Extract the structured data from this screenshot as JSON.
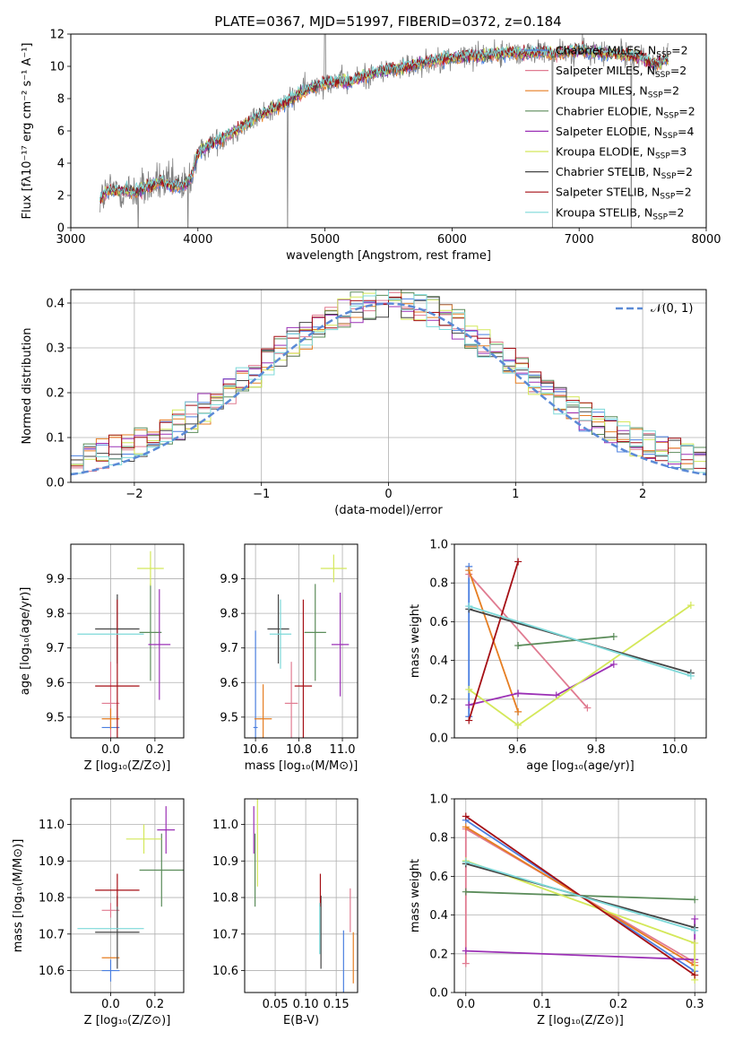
{
  "title": "PLATE=0367, MJD=51997, FIBERID=0372, z=0.184",
  "colors": {
    "chabrier_miles": "#4a7fe0",
    "salpeter_miles": "#e07b91",
    "kroupa_miles": "#e67e22",
    "chabrier_elodie": "#5b8c5a",
    "salpeter_elodie": "#9b30b5",
    "kroupa_elodie": "#d4e85a",
    "chabrier_stelib": "#444444",
    "salpeter_stelib": "#a50f15",
    "kroupa_stelib": "#7dd9d9",
    "normal_curve": "#5b8ad6",
    "grid": "#b0b0b0"
  },
  "chart_data": [
    {
      "id": "spectrum",
      "type": "line",
      "xlabel": "wavelength [Angstrom, rest frame]",
      "ylabel": "Flux [fλ10⁻¹⁷ erg cm⁻² s⁻¹ A⁻¹]",
      "xlim": [
        3000,
        8000
      ],
      "ylim": [
        0,
        12
      ],
      "xticks": [
        "3000",
        "4000",
        "5000",
        "6000",
        "7000",
        "8000"
      ],
      "yticks": [
        "0",
        "2",
        "4",
        "6",
        "8",
        "10",
        "12"
      ],
      "grid": false,
      "legend_position": "top-right",
      "continuum": [
        [
          3230,
          1.8
        ],
        [
          3300,
          2.3
        ],
        [
          3400,
          2.3
        ],
        [
          3500,
          2.2
        ],
        [
          3600,
          2.5
        ],
        [
          3700,
          2.8
        ],
        [
          3800,
          2.6
        ],
        [
          3900,
          2.6
        ],
        [
          3950,
          3.2
        ],
        [
          4000,
          4.6
        ],
        [
          4100,
          5.2
        ],
        [
          4200,
          5.6
        ],
        [
          4300,
          6.0
        ],
        [
          4400,
          6.5
        ],
        [
          4500,
          7.0
        ],
        [
          4600,
          7.4
        ],
        [
          4700,
          7.8
        ],
        [
          4800,
          8.3
        ],
        [
          4900,
          8.7
        ],
        [
          5000,
          9.0
        ],
        [
          5100,
          9.1
        ],
        [
          5200,
          9.0
        ],
        [
          5300,
          9.4
        ],
        [
          5400,
          9.6
        ],
        [
          5500,
          9.8
        ],
        [
          5600,
          9.9
        ],
        [
          5700,
          10.1
        ],
        [
          5800,
          10.3
        ],
        [
          5900,
          10.4
        ],
        [
          6000,
          10.5
        ],
        [
          6100,
          10.6
        ],
        [
          6200,
          10.7
        ],
        [
          6300,
          10.7
        ],
        [
          6400,
          10.8
        ],
        [
          6500,
          10.9
        ],
        [
          6600,
          10.8
        ],
        [
          6700,
          10.9
        ],
        [
          6800,
          10.8
        ],
        [
          6900,
          10.9
        ],
        [
          7000,
          11.0
        ],
        [
          7100,
          10.9
        ],
        [
          7200,
          10.8
        ],
        [
          7300,
          10.8
        ],
        [
          7400,
          10.7
        ],
        [
          7500,
          10.5
        ],
        [
          7600,
          10.1
        ],
        [
          7700,
          10.5
        ]
      ],
      "series": [
        {
          "name": "Chabrier MILES, N_SSP=2",
          "label": "Chabrier MILES, N",
          "sub": "SSP",
          "suffix": "=2",
          "color_key": "chabrier_miles"
        },
        {
          "name": "Salpeter MILES, N_SSP=2",
          "label": "Salpeter MILES, N",
          "sub": "SSP",
          "suffix": "=2",
          "color_key": "salpeter_miles"
        },
        {
          "name": "Kroupa MILES, N_SSP=2",
          "label": "Kroupa MILES, N",
          "sub": "SSP",
          "suffix": "=2",
          "color_key": "kroupa_miles"
        },
        {
          "name": "Chabrier ELODIE, N_SSP=2",
          "label": "Chabrier ELODIE, N",
          "sub": "SSP",
          "suffix": "=2",
          "color_key": "chabrier_elodie"
        },
        {
          "name": "Salpeter ELODIE, N_SSP=4",
          "label": "Salpeter ELODIE, N",
          "sub": "SSP",
          "suffix": "=4",
          "color_key": "salpeter_elodie"
        },
        {
          "name": "Kroupa ELODIE, N_SSP=3",
          "label": "Kroupa ELODIE, N",
          "sub": "SSP",
          "suffix": "=3",
          "color_key": "kroupa_elodie"
        },
        {
          "name": "Chabrier STELIB, N_SSP=2",
          "label": "Chabrier STELIB, N",
          "sub": "SSP",
          "suffix": "=2",
          "color_key": "chabrier_stelib"
        },
        {
          "name": "Salpeter STELIB, N_SSP=2",
          "label": "Salpeter STELIB, N",
          "sub": "SSP",
          "suffix": "=2",
          "color_key": "salpeter_stelib"
        },
        {
          "name": "Kroupa STELIB, N_SSP=2",
          "label": "Kroupa STELIB, N",
          "sub": "SSP",
          "suffix": "=2",
          "color_key": "kroupa_stelib"
        }
      ]
    },
    {
      "id": "residuals",
      "type": "histogram",
      "xlabel": "(data-model)/error",
      "ylabel": "Normed distribution",
      "xlim": [
        -2.5,
        2.5
      ],
      "ylim": [
        0,
        0.43
      ],
      "xticks": [
        "−2",
        "−1",
        "0",
        "1",
        "2"
      ],
      "yticks": [
        "0.0",
        "0.1",
        "0.2",
        "0.3",
        "0.4"
      ],
      "grid": true,
      "legend_position": "top-right",
      "normal_label": "𝒩(0, 1)",
      "bin_width": 0.1,
      "x_start": -2.5
    },
    {
      "id": "age_vs_Z",
      "type": "errorbar",
      "xlabel": "Z [log₁₀(Z/Z⊙)]",
      "ylabel": "age  [log₁₀(age/yr)]",
      "xlim": [
        -0.18,
        0.33
      ],
      "ylim": [
        9.44,
        10.0
      ],
      "xticks": [
        "0.0",
        "0.2"
      ],
      "yticks": [
        "9.5",
        "9.6",
        "9.7",
        "9.8",
        "9.9"
      ],
      "grid": true,
      "points": [
        {
          "color_key": "chabrier_miles",
          "x": 0.0,
          "dx": 0.04,
          "y": 9.47,
          "dy": 0.0
        },
        {
          "color_key": "salpeter_miles",
          "x": 0.0,
          "dx": 0.04,
          "y": 9.54,
          "dy": 0.12
        },
        {
          "color_key": "kroupa_miles",
          "x": 0.0,
          "dx": 0.04,
          "y": 9.495,
          "dy": 0.03
        },
        {
          "color_key": "chabrier_elodie",
          "x": 0.18,
          "dx": 0.05,
          "y": 9.745,
          "dy": 0.14
        },
        {
          "color_key": "salpeter_elodie",
          "x": 0.22,
          "dx": 0.05,
          "y": 9.71,
          "dy": 0.16
        },
        {
          "color_key": "kroupa_elodie",
          "x": 0.18,
          "dx": 0.06,
          "y": 9.93,
          "dy": 0.05
        },
        {
          "color_key": "chabrier_stelib",
          "x": 0.03,
          "dx": 0.1,
          "y": 9.755,
          "dy": 0.1
        },
        {
          "color_key": "salpeter_stelib",
          "x": 0.03,
          "dx": 0.1,
          "y": 9.59,
          "dy": 0.25
        },
        {
          "color_key": "kroupa_stelib",
          "x": 0.0,
          "dx": 0.15,
          "y": 9.74,
          "dy": 0.0
        }
      ]
    },
    {
      "id": "age_vs_mass",
      "type": "errorbar",
      "xlabel": "mass [log₁₀(M/M⊙)]",
      "ylabel": "",
      "xlim": [
        10.55,
        11.07
      ],
      "ylim": [
        9.44,
        10.0
      ],
      "xticks": [
        "10.6",
        "10.8",
        "11.0"
      ],
      "yticks": [
        "9.5",
        "9.6",
        "9.7",
        "9.8",
        "9.9"
      ],
      "grid": true,
      "points": [
        {
          "color_key": "chabrier_miles",
          "x": 10.6,
          "dx": 0.01,
          "y": 9.47,
          "dy": 0.28
        },
        {
          "color_key": "salpeter_miles",
          "x": 10.765,
          "dx": 0.03,
          "y": 9.54,
          "dy": 0.12
        },
        {
          "color_key": "kroupa_miles",
          "x": 10.635,
          "dx": 0.04,
          "y": 9.495,
          "dy": 0.1
        },
        {
          "color_key": "chabrier_elodie",
          "x": 10.875,
          "dx": 0.05,
          "y": 9.745,
          "dy": 0.14
        },
        {
          "color_key": "salpeter_elodie",
          "x": 10.99,
          "dx": 0.04,
          "y": 9.71,
          "dy": 0.15
        },
        {
          "color_key": "kroupa_elodie",
          "x": 10.96,
          "dx": 0.06,
          "y": 9.93,
          "dy": 0.04
        },
        {
          "color_key": "chabrier_stelib",
          "x": 10.705,
          "dx": 0.05,
          "y": 9.755,
          "dy": 0.1
        },
        {
          "color_key": "salpeter_stelib",
          "x": 10.82,
          "dx": 0.04,
          "y": 9.59,
          "dy": 0.25
        },
        {
          "color_key": "kroupa_stelib",
          "x": 10.715,
          "dx": 0.05,
          "y": 9.74,
          "dy": 0.1
        }
      ]
    },
    {
      "id": "weight_vs_age",
      "type": "line",
      "xlabel": "age  [log₁₀(age/yr)]",
      "ylabel": "mass weight",
      "xlim": [
        9.44,
        10.08
      ],
      "ylim": [
        0,
        1.0
      ],
      "xticks": [
        "9.6",
        "9.8",
        "10.0"
      ],
      "yticks": [
        "0.0",
        "0.2",
        "0.4",
        "0.6",
        "0.8",
        "1.0"
      ],
      "grid": true,
      "series": [
        {
          "color_key": "chabrier_miles",
          "x": [
            9.477,
            9.477
          ],
          "y": [
            0.885,
            0.11
          ]
        },
        {
          "color_key": "salpeter_miles",
          "x": [
            9.477,
            9.778
          ],
          "y": [
            0.845,
            0.155
          ]
        },
        {
          "color_key": "kroupa_miles",
          "x": [
            9.477,
            9.602
          ],
          "y": [
            0.865,
            0.135
          ]
        },
        {
          "color_key": "chabrier_elodie",
          "x": [
            9.602,
            9.845
          ],
          "y": [
            0.477,
            0.523
          ]
        },
        {
          "color_key": "salpeter_elodie",
          "x": [
            9.477,
            9.602,
            9.699,
            9.845
          ],
          "y": [
            0.17,
            0.23,
            0.22,
            0.38
          ]
        },
        {
          "color_key": "kroupa_elodie",
          "x": [
            9.477,
            9.602,
            10.041
          ],
          "y": [
            0.25,
            0.065,
            0.685
          ]
        },
        {
          "color_key": "chabrier_stelib",
          "x": [
            9.477,
            10.041
          ],
          "y": [
            0.665,
            0.335
          ]
        },
        {
          "color_key": "salpeter_stelib",
          "x": [
            9.477,
            9.602
          ],
          "y": [
            0.09,
            0.91
          ]
        },
        {
          "color_key": "kroupa_stelib",
          "x": [
            9.477,
            10.041
          ],
          "y": [
            0.68,
            0.32
          ]
        }
      ]
    },
    {
      "id": "mass_vs_Z",
      "type": "errorbar",
      "xlabel": "Z [log₁₀(Z/Z⊙)]",
      "ylabel": "mass [log₁₀(M/M⊙)]",
      "xlim": [
        -0.18,
        0.33
      ],
      "ylim": [
        10.54,
        11.07
      ],
      "xticks": [
        "0.0",
        "0.2"
      ],
      "yticks": [
        "10.6",
        "10.7",
        "10.8",
        "10.9",
        "11.0"
      ],
      "grid": true,
      "points": [
        {
          "color_key": "chabrier_miles",
          "x": 0.0,
          "dx": 0.04,
          "y": 10.6,
          "dy": 0.03
        },
        {
          "color_key": "salpeter_miles",
          "x": 0.0,
          "dx": 0.04,
          "y": 10.765,
          "dy": 0.02
        },
        {
          "color_key": "kroupa_miles",
          "x": 0.0,
          "dx": 0.04,
          "y": 10.635,
          "dy": 0.0
        },
        {
          "color_key": "chabrier_elodie",
          "x": 0.23,
          "dx": 0.1,
          "y": 10.875,
          "dy": 0.1
        },
        {
          "color_key": "salpeter_elodie",
          "x": 0.25,
          "dx": 0.04,
          "y": 10.985,
          "dy": 0.065
        },
        {
          "color_key": "kroupa_elodie",
          "x": 0.15,
          "dx": 0.08,
          "y": 10.96,
          "dy": 0.04
        },
        {
          "color_key": "chabrier_stelib",
          "x": 0.03,
          "dx": 0.1,
          "y": 10.705,
          "dy": 0.1
        },
        {
          "color_key": "salpeter_stelib",
          "x": 0.03,
          "dx": 0.1,
          "y": 10.82,
          "dy": 0.045
        },
        {
          "color_key": "kroupa_stelib",
          "x": 0.0,
          "dx": 0.15,
          "y": 10.715,
          "dy": 0.0
        }
      ]
    },
    {
      "id": "mass_vs_ebv",
      "type": "errorbar",
      "xlabel": "E(B-V)",
      "ylabel": "",
      "xlim": [
        0.0,
        0.185
      ],
      "ylim": [
        10.54,
        11.07
      ],
      "xticks": [
        "0.05",
        "0.10",
        "0.15"
      ],
      "yticks": [
        "10.6",
        "10.7",
        "10.8",
        "10.9",
        "11.0"
      ],
      "grid": true,
      "points": [
        {
          "color_key": "chabrier_miles",
          "x": 0.162,
          "dx": 0.0,
          "y": 10.6,
          "dy": 0.11
        },
        {
          "color_key": "salpeter_miles",
          "x": 0.173,
          "dx": 0.0,
          "y": 10.765,
          "dy": 0.06
        },
        {
          "color_key": "kroupa_miles",
          "x": 0.178,
          "dx": 0.0,
          "y": 10.635,
          "dy": 0.07
        },
        {
          "color_key": "chabrier_elodie",
          "x": 0.017,
          "dx": 0.0,
          "y": 10.875,
          "dy": 0.1
        },
        {
          "color_key": "salpeter_elodie",
          "x": 0.015,
          "dx": 0.0,
          "y": 10.985,
          "dy": 0.065
        },
        {
          "color_key": "kroupa_elodie",
          "x": 0.021,
          "dx": 0.0,
          "y": 10.96,
          "dy": 0.13
        },
        {
          "color_key": "chabrier_stelib",
          "x": 0.125,
          "dx": 0.0,
          "y": 10.705,
          "dy": 0.1
        },
        {
          "color_key": "salpeter_stelib",
          "x": 0.124,
          "dx": 0.0,
          "y": 10.82,
          "dy": 0.045
        },
        {
          "color_key": "kroupa_stelib",
          "x": 0.123,
          "dx": 0.0,
          "y": 10.715,
          "dy": 0.07
        }
      ]
    },
    {
      "id": "weight_vs_Z",
      "type": "line",
      "xlabel": "Z [log₁₀(Z/Z⊙)]",
      "ylabel": "mass weight",
      "xlim": [
        -0.015,
        0.315
      ],
      "ylim": [
        0,
        1.0
      ],
      "xticks": [
        "0.0",
        "0.1",
        "0.2",
        "0.3"
      ],
      "yticks": [
        "0.0",
        "0.2",
        "0.4",
        "0.6",
        "0.8",
        "1.0"
      ],
      "grid": true,
      "series": [
        {
          "color_key": "chabrier_miles",
          "x": [
            0.0,
            0.3
          ],
          "y": [
            0.89,
            0.11
          ]
        },
        {
          "color_key": "salpeter_miles",
          "x": [
            0.0,
            0.0,
            0.3
          ],
          "y": [
            0.15,
            0.845,
            0.155
          ]
        },
        {
          "color_key": "kroupa_miles",
          "x": [
            0.0,
            0.3
          ],
          "y": [
            0.855,
            0.14
          ]
        },
        {
          "color_key": "chabrier_elodie",
          "x": [
            0.0,
            0.3
          ],
          "y": [
            0.52,
            0.48
          ]
        },
        {
          "color_key": "salpeter_elodie",
          "x": [
            0.0,
            0.3,
            0.3
          ],
          "y": [
            0.215,
            0.17,
            0.38
          ]
        },
        {
          "color_key": "kroupa_elodie",
          "x": [
            0.0,
            0.3,
            0.3
          ],
          "y": [
            0.68,
            0.255,
            0.065
          ]
        },
        {
          "color_key": "chabrier_stelib",
          "x": [
            0.0,
            0.3
          ],
          "y": [
            0.665,
            0.335
          ]
        },
        {
          "color_key": "salpeter_stelib",
          "x": [
            0.0,
            0.3
          ],
          "y": [
            0.91,
            0.09
          ]
        },
        {
          "color_key": "kroupa_stelib",
          "x": [
            0.0,
            0.3
          ],
          "y": [
            0.675,
            0.32
          ]
        }
      ]
    }
  ]
}
